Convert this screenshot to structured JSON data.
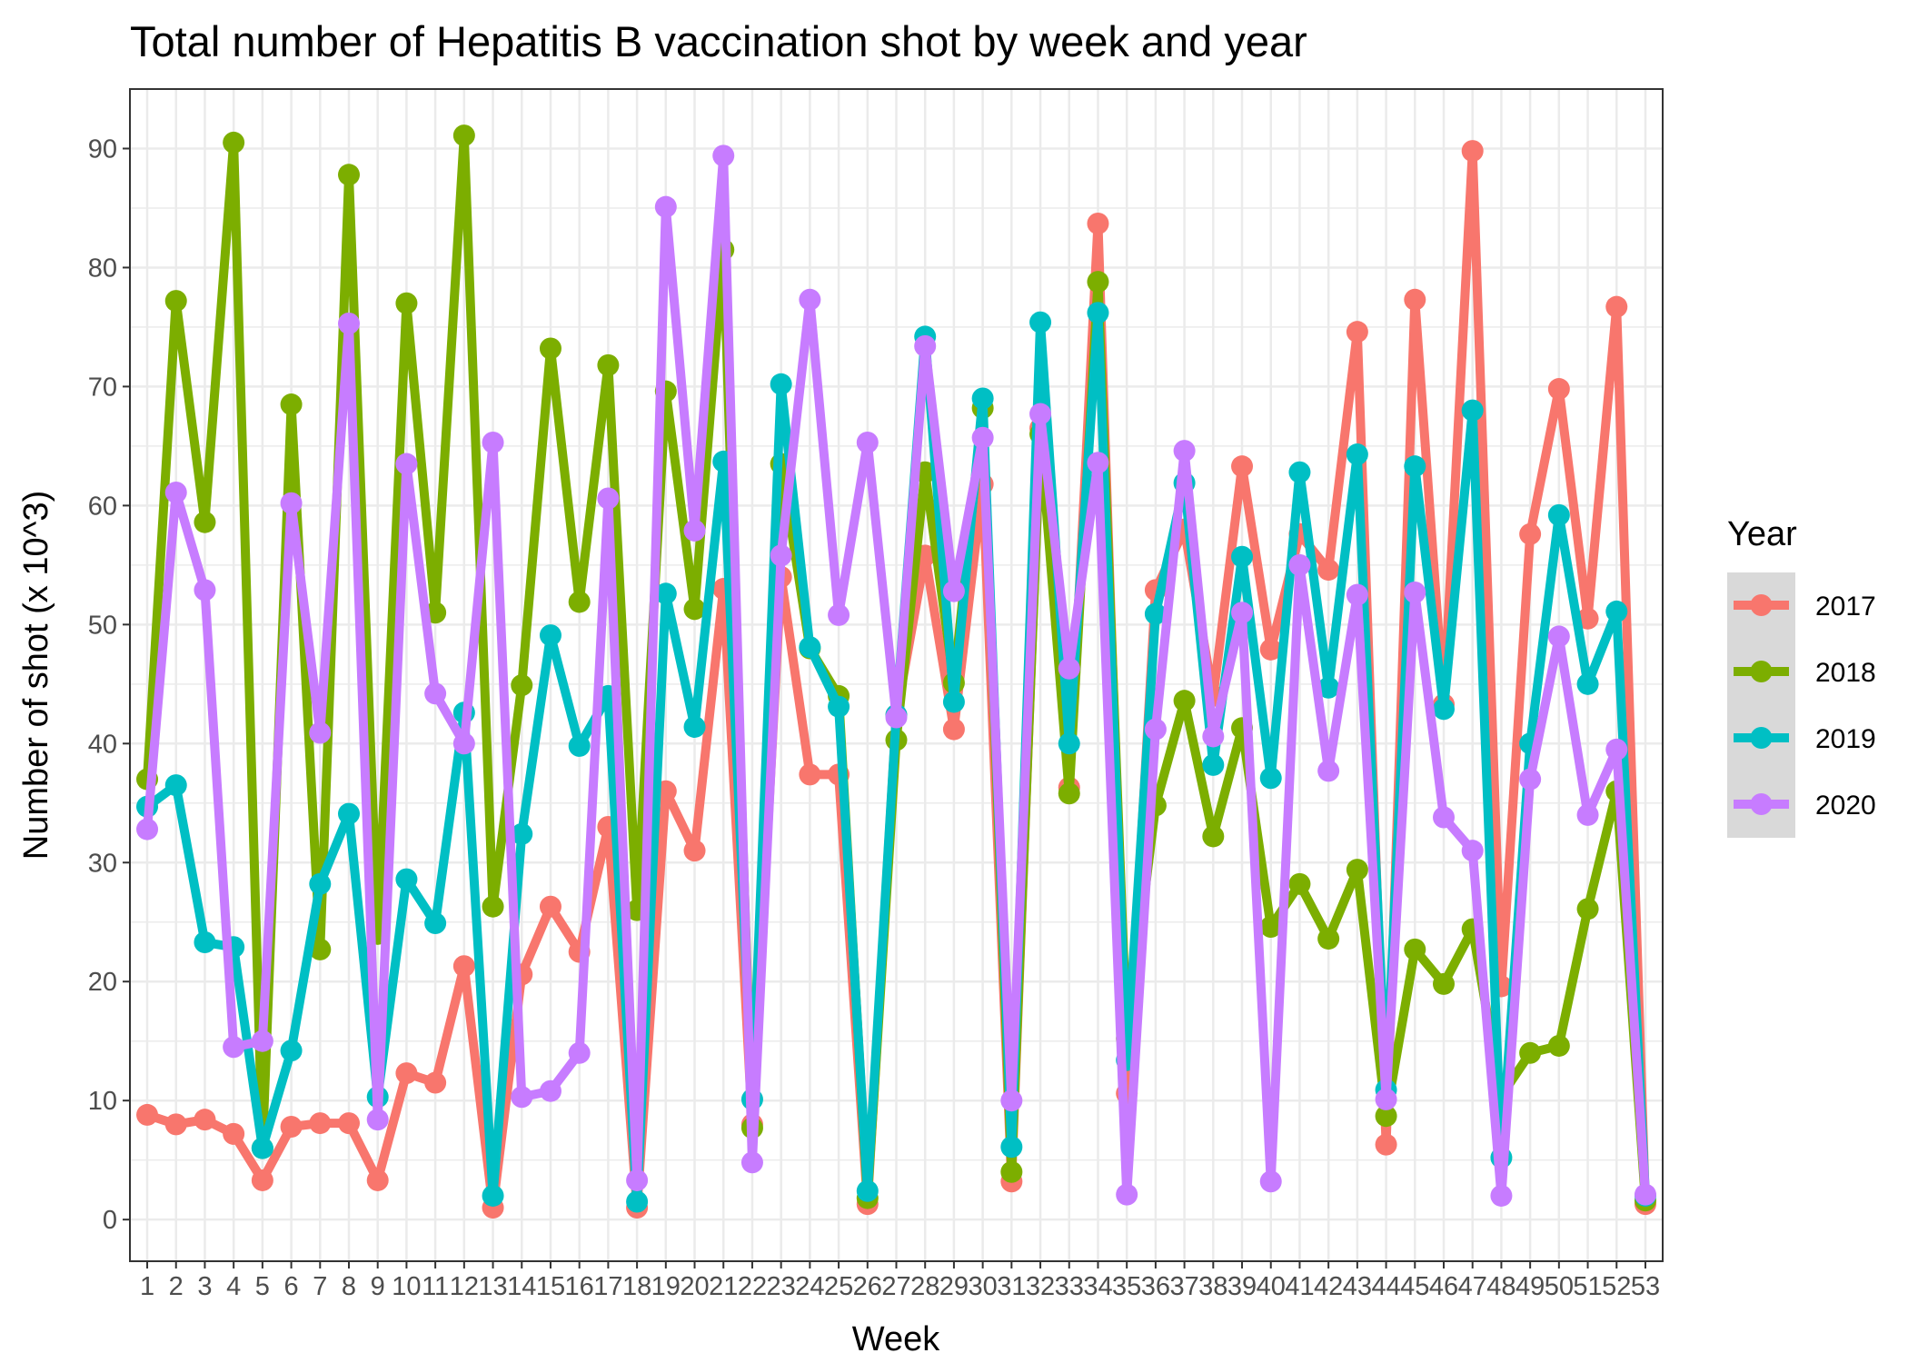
{
  "chart_data": {
    "type": "line",
    "title": "Total number of Hepatitis B vaccination shot by week and year",
    "xlabel": "Week",
    "ylabel": "Number of shot (x 10^3)",
    "x": [
      1,
      2,
      3,
      4,
      5,
      6,
      7,
      8,
      9,
      10,
      11,
      12,
      13,
      14,
      15,
      16,
      17,
      18,
      19,
      20,
      21,
      22,
      23,
      24,
      25,
      26,
      27,
      28,
      29,
      30,
      31,
      32,
      33,
      34,
      35,
      36,
      37,
      38,
      39,
      40,
      41,
      42,
      43,
      44,
      45,
      46,
      47,
      48,
      49,
      50,
      51,
      52,
      53
    ],
    "x_tick_labels": [
      "1",
      "2",
      "3",
      "4",
      "5",
      "6",
      "7",
      "8",
      "9",
      "10",
      "11",
      "12",
      "13",
      "14",
      "15",
      "16",
      "17",
      "18",
      "19",
      "20",
      "21",
      "22",
      "23",
      "24",
      "25",
      "26",
      "27",
      "28",
      "29",
      "30",
      "31",
      "32",
      "33",
      "34",
      "35",
      "36",
      "37",
      "38",
      "39",
      "40",
      "41",
      "42",
      "43",
      "44",
      "45",
      "46",
      "47",
      "48",
      "49",
      "50",
      "51",
      "52",
      "53"
    ],
    "ylim": [
      -3.5,
      95
    ],
    "y_ticks": [
      0,
      10,
      20,
      30,
      40,
      50,
      60,
      70,
      80,
      90
    ],
    "y_tick_labels": [
      "0",
      "10",
      "20",
      "30",
      "40",
      "50",
      "60",
      "70",
      "80",
      "90"
    ],
    "grid": true,
    "legend_title": "Year",
    "legend_position": "right",
    "series": [
      {
        "name": "2017",
        "color": "#F8766D",
        "values": [
          8.8,
          8.0,
          8.4,
          7.2,
          3.3,
          7.8,
          8.1,
          8.1,
          3.3,
          12.3,
          11.5,
          21.3,
          1.0,
          20.6,
          26.3,
          22.5,
          33.0,
          1.0,
          36.0,
          31.0,
          53.0,
          8.0,
          54.0,
          37.4,
          37.4,
          1.3,
          42.4,
          55.8,
          41.2,
          61.8,
          3.2,
          66.5,
          36.3,
          83.7,
          10.6,
          52.9,
          58.0,
          44.0,
          63.3,
          47.9,
          57.6,
          54.6,
          74.6,
          6.3,
          77.3,
          43.3,
          89.8,
          19.6,
          57.6,
          69.8,
          50.5,
          76.7,
          1.3
        ]
      },
      {
        "name": "2018",
        "color": "#7CAE00",
        "values": [
          37.0,
          77.2,
          58.6,
          90.5,
          6.0,
          68.5,
          22.7,
          87.8,
          24.0,
          77.0,
          51.0,
          91.1,
          26.3,
          44.9,
          73.2,
          51.9,
          71.8,
          26.0,
          69.6,
          51.3,
          81.5,
          7.7,
          63.5,
          48.0,
          44.0,
          1.8,
          40.3,
          62.8,
          45.1,
          68.2,
          4.0,
          66.0,
          35.8,
          78.8,
          15.2,
          34.8,
          43.6,
          32.2,
          41.3,
          24.6,
          28.2,
          23.6,
          29.4,
          8.7,
          22.7,
          19.8,
          24.4,
          10.4,
          14.0,
          14.6,
          26.1,
          36.0,
          1.6
        ]
      },
      {
        "name": "2019",
        "color": "#00BFC4",
        "values": [
          34.7,
          36.5,
          23.3,
          22.9,
          6.0,
          14.2,
          28.2,
          34.1,
          10.3,
          28.6,
          24.9,
          42.6,
          2.0,
          32.4,
          49.1,
          39.8,
          44.0,
          1.5,
          52.6,
          41.4,
          63.7,
          10.1,
          70.2,
          48.1,
          43.1,
          2.4,
          42.4,
          74.2,
          43.5,
          69.0,
          6.1,
          75.4,
          40.0,
          76.2,
          13.4,
          50.9,
          61.9,
          38.2,
          55.7,
          37.1,
          62.8,
          44.7,
          64.3,
          10.9,
          63.3,
          42.9,
          68.0,
          5.2,
          40.0,
          59.2,
          45.0,
          51.1,
          2.0
        ]
      },
      {
        "name": "2020",
        "color": "#C77CFF",
        "values": [
          32.8,
          61.1,
          52.9,
          14.5,
          15.0,
          60.2,
          40.9,
          75.3,
          8.4,
          63.5,
          44.2,
          40.0,
          65.3,
          10.3,
          10.8,
          14.0,
          60.6,
          3.3,
          85.1,
          57.9,
          89.4,
          4.8,
          55.8,
          77.3,
          50.8,
          65.3,
          42.2,
          73.4,
          52.8,
          65.7,
          10.0,
          67.7,
          46.3,
          63.6,
          2.1,
          41.2,
          64.6,
          40.6,
          51.0,
          3.2,
          55.0,
          37.7,
          52.5,
          10.1,
          52.7,
          33.8,
          31.0,
          2.0,
          37.0,
          49.0,
          34.0,
          39.5,
          2.1
        ]
      }
    ]
  }
}
